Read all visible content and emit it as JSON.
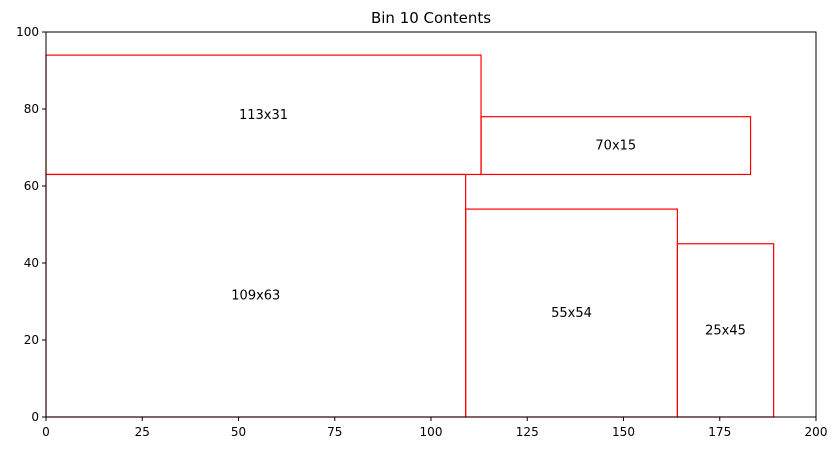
{
  "chart_data": {
    "type": "rectangles",
    "title": "Bin 10 Contents",
    "xlabel": "",
    "ylabel": "",
    "xlim": [
      0,
      200
    ],
    "ylim": [
      0,
      100
    ],
    "xticks": [
      0,
      25,
      50,
      75,
      100,
      125,
      150,
      175,
      200
    ],
    "yticks": [
      0,
      20,
      40,
      60,
      80,
      100
    ],
    "grid": false,
    "edge_color": "#ff0000",
    "rectangles": [
      {
        "label": "109x63",
        "x": 0,
        "y": 0,
        "width": 109,
        "height": 63
      },
      {
        "label": "113x31",
        "x": 0,
        "y": 63,
        "width": 113,
        "height": 31
      },
      {
        "label": "70x15",
        "x": 113,
        "y": 63,
        "width": 70,
        "height": 15
      },
      {
        "label": "55x54",
        "x": 109,
        "y": 0,
        "width": 55,
        "height": 54
      },
      {
        "label": "25x45",
        "x": 164,
        "y": 0,
        "width": 25,
        "height": 45
      }
    ]
  }
}
